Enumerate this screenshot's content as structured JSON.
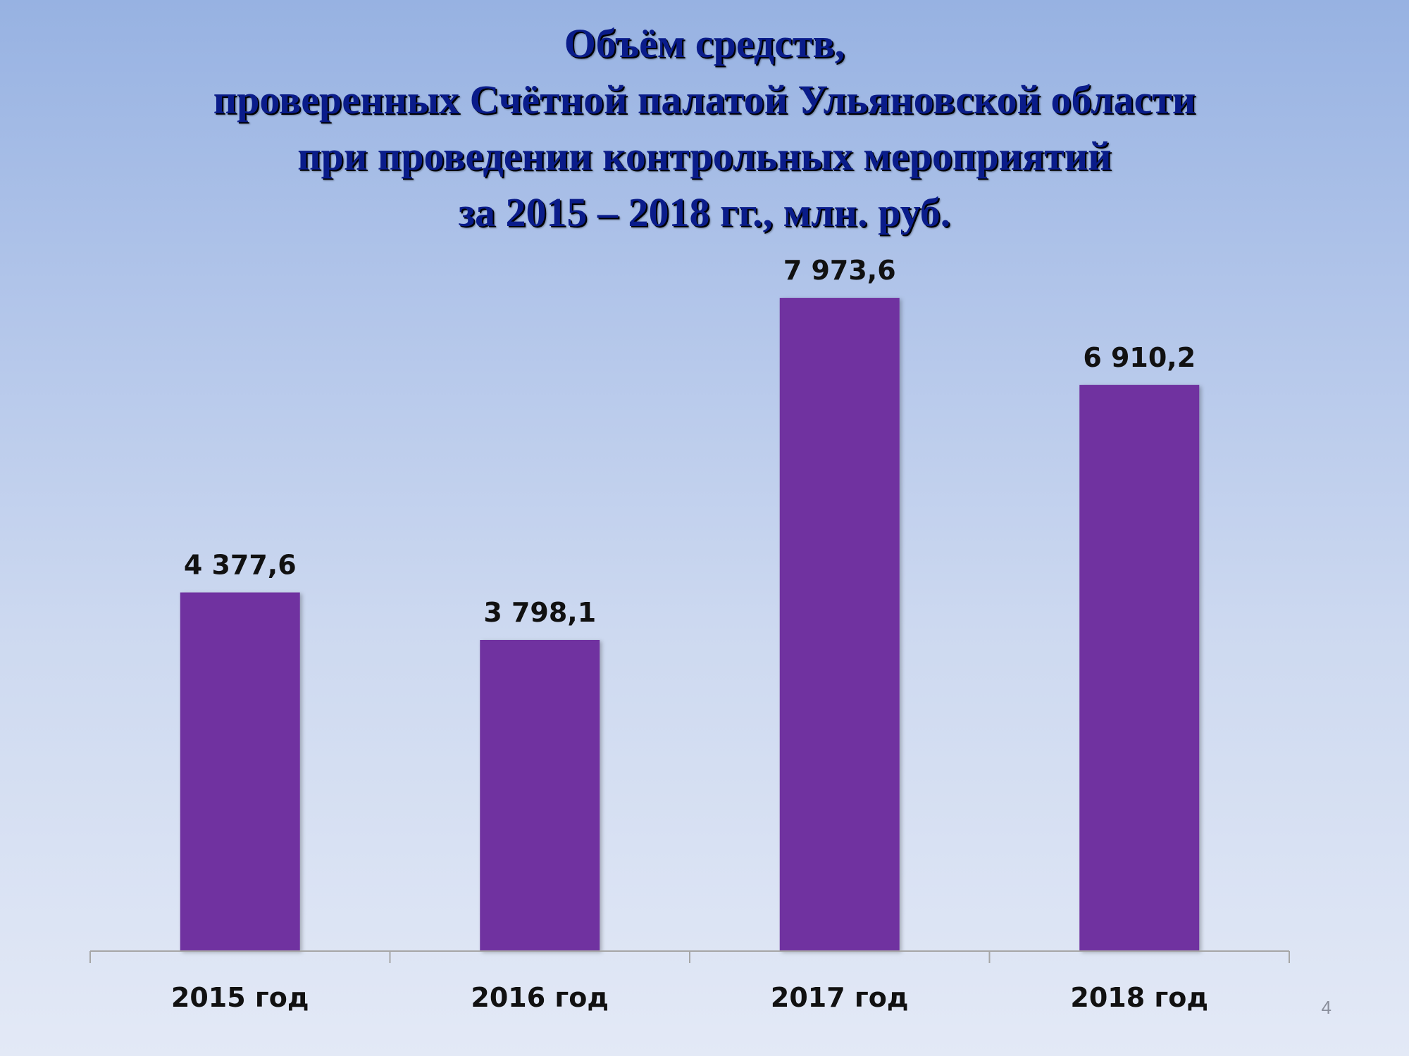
{
  "slide": {
    "title_lines": [
      "Объём средств,",
      "проверенных Счётной палатой Ульяновской области",
      "при проведении контрольных мероприятий",
      "за 2015 – 2018 гг., млн. руб."
    ],
    "page_number": "4"
  },
  "chart_data": {
    "type": "bar",
    "categories": [
      "2015 год",
      "2016 год",
      "2017 год",
      "2018 год"
    ],
    "values": [
      4377.6,
      3798.1,
      7973.6,
      6910.2
    ],
    "value_labels": [
      "4 377,6",
      "3 798,1",
      "7 973,6",
      "6 910,2"
    ],
    "title": "Объём средств, проверенных Счётной палатой Ульяновской области при проведении контрольных мероприятий за 2015 – 2018 гг., млн. руб.",
    "xlabel": "",
    "ylabel": "",
    "ylim": [
      0,
      8000
    ],
    "grid": false,
    "legend": "none",
    "colors": {
      "bar": "#7030a0",
      "axis": "#a6a6a6",
      "label": "#111111"
    }
  }
}
